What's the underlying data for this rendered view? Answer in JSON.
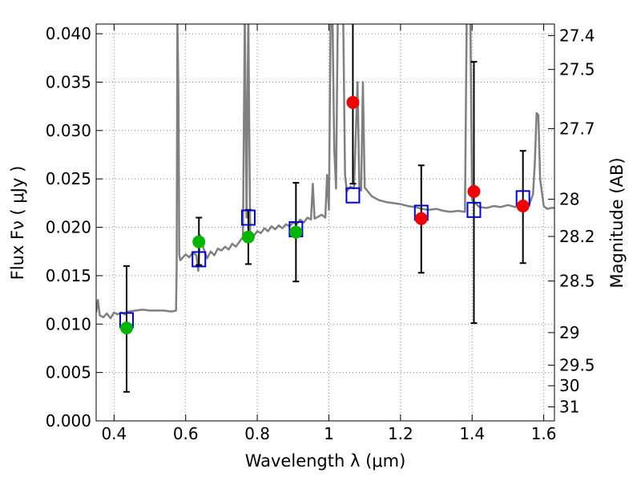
{
  "chart_data": {
    "type": "scatter",
    "xlabel": "Wavelength  λ (μm)",
    "ylabel": "Flux  Fν  ( μJy )",
    "ylabel_right": "Magnitude (AB)",
    "xlim": [
      0.35,
      1.63
    ],
    "ylim": [
      0.0,
      0.041
    ],
    "grid": true,
    "x_ticks": [
      {
        "v": 0.4,
        "label": "0.4"
      },
      {
        "v": 0.6,
        "label": "0.6"
      },
      {
        "v": 0.8,
        "label": "0.8"
      },
      {
        "v": 1.0,
        "label": "1"
      },
      {
        "v": 1.2,
        "label": "1.2"
      },
      {
        "v": 1.4,
        "label": "1.4"
      },
      {
        "v": 1.6,
        "label": "1.6"
      }
    ],
    "y_ticks": [
      {
        "v": 0.0,
        "label": "0.000"
      },
      {
        "v": 0.005,
        "label": "0.005"
      },
      {
        "v": 0.01,
        "label": "0.010"
      },
      {
        "v": 0.015,
        "label": "0.015"
      },
      {
        "v": 0.02,
        "label": "0.020"
      },
      {
        "v": 0.025,
        "label": "0.025"
      },
      {
        "v": 0.03,
        "label": "0.030"
      },
      {
        "v": 0.035,
        "label": "0.035"
      },
      {
        "v": 0.04,
        "label": "0.040"
      }
    ],
    "mag_ticks": [
      {
        "v": 27.4,
        "label": "27.4"
      },
      {
        "v": 27.5,
        "label": "27.5"
      },
      {
        "v": 27.7,
        "label": "27.7"
      },
      {
        "v": 28.0,
        "label": "28"
      },
      {
        "v": 28.2,
        "label": "28.2"
      },
      {
        "v": 28.5,
        "label": "28.5"
      },
      {
        "v": 29.0,
        "label": "29"
      },
      {
        "v": 29.5,
        "label": "29.5"
      },
      {
        "v": 30.0,
        "label": "30"
      },
      {
        "v": 31.0,
        "label": "31"
      }
    ],
    "colors": {
      "spectrum": "#808080",
      "model_box": "#0000cc",
      "green_points": "#00b400",
      "red_points": "#ee0000",
      "errorbar": "#000000",
      "grid": "#808080"
    },
    "series": [
      {
        "kind": "spectrum",
        "points": [
          [
            0.35,
            0.0112
          ],
          [
            0.355,
            0.0125
          ],
          [
            0.36,
            0.0109
          ],
          [
            0.37,
            0.0107
          ],
          [
            0.38,
            0.0111
          ],
          [
            0.39,
            0.0106
          ],
          [
            0.4,
            0.0112
          ],
          [
            0.41,
            0.011
          ],
          [
            0.42,
            0.0112
          ],
          [
            0.43,
            0.011
          ],
          [
            0.44,
            0.0113
          ],
          [
            0.46,
            0.0114
          ],
          [
            0.48,
            0.0115
          ],
          [
            0.5,
            0.0114
          ],
          [
            0.52,
            0.0114
          ],
          [
            0.54,
            0.0114
          ],
          [
            0.56,
            0.0113
          ],
          [
            0.573,
            0.0114
          ],
          [
            0.575,
            0.016
          ],
          [
            0.577,
            0.042
          ],
          [
            0.58,
            0.033
          ],
          [
            0.582,
            0.0172
          ],
          [
            0.585,
            0.0166
          ],
          [
            0.59,
            0.0168
          ],
          [
            0.6,
            0.0172
          ],
          [
            0.61,
            0.0169
          ],
          [
            0.62,
            0.0174
          ],
          [
            0.63,
            0.0171
          ],
          [
            0.635,
            0.0155
          ],
          [
            0.64,
            0.0192
          ],
          [
            0.65,
            0.0178
          ],
          [
            0.66,
            0.0168
          ],
          [
            0.67,
            0.0175
          ],
          [
            0.68,
            0.0171
          ],
          [
            0.69,
            0.0178
          ],
          [
            0.7,
            0.0176
          ],
          [
            0.71,
            0.018
          ],
          [
            0.72,
            0.0177
          ],
          [
            0.73,
            0.0183
          ],
          [
            0.74,
            0.018
          ],
          [
            0.75,
            0.0185
          ],
          [
            0.76,
            0.019
          ],
          [
            0.765,
            0.042
          ],
          [
            0.77,
            0.021
          ],
          [
            0.775,
            0.042
          ],
          [
            0.78,
            0.0195
          ],
          [
            0.79,
            0.0191
          ],
          [
            0.8,
            0.0196
          ],
          [
            0.81,
            0.0194
          ],
          [
            0.82,
            0.0199
          ],
          [
            0.83,
            0.0196
          ],
          [
            0.84,
            0.0201
          ],
          [
            0.85,
            0.0198
          ],
          [
            0.86,
            0.0202
          ],
          [
            0.87,
            0.0199
          ],
          [
            0.88,
            0.0203
          ],
          [
            0.89,
            0.0201
          ],
          [
            0.9,
            0.0205
          ],
          [
            0.91,
            0.0203
          ],
          [
            0.92,
            0.0208
          ],
          [
            0.93,
            0.0205
          ],
          [
            0.94,
            0.021
          ],
          [
            0.95,
            0.0208
          ],
          [
            0.955,
            0.0245
          ],
          [
            0.96,
            0.0209
          ],
          [
            0.97,
            0.0211
          ],
          [
            0.98,
            0.0213
          ],
          [
            0.99,
            0.021
          ],
          [
            0.995,
            0.0254
          ],
          [
            1.0,
            0.0218
          ],
          [
            1.005,
            0.042
          ],
          [
            1.01,
            0.042
          ],
          [
            1.015,
            0.028
          ],
          [
            1.02,
            0.024
          ],
          [
            1.025,
            0.042
          ],
          [
            1.03,
            0.042
          ],
          [
            1.035,
            0.042
          ],
          [
            1.04,
            0.042
          ],
          [
            1.045,
            0.0255
          ],
          [
            1.05,
            0.0237
          ],
          [
            1.06,
            0.0242
          ],
          [
            1.07,
            0.024
          ],
          [
            1.08,
            0.035
          ],
          [
            1.085,
            0.024
          ],
          [
            1.09,
            0.0238
          ],
          [
            1.095,
            0.035
          ],
          [
            1.1,
            0.0241
          ],
          [
            1.12,
            0.0232
          ],
          [
            1.14,
            0.0228
          ],
          [
            1.16,
            0.0226
          ],
          [
            1.18,
            0.0225
          ],
          [
            1.2,
            0.0224
          ],
          [
            1.22,
            0.0222
          ],
          [
            1.24,
            0.0221
          ],
          [
            1.26,
            0.0219
          ],
          [
            1.28,
            0.0218
          ],
          [
            1.3,
            0.0219
          ],
          [
            1.32,
            0.0217
          ],
          [
            1.34,
            0.0216
          ],
          [
            1.36,
            0.0217
          ],
          [
            1.38,
            0.0216
          ],
          [
            1.385,
            0.042
          ],
          [
            1.395,
            0.042
          ],
          [
            1.4,
            0.0228
          ],
          [
            1.42,
            0.0221
          ],
          [
            1.44,
            0.022
          ],
          [
            1.46,
            0.0222
          ],
          [
            1.48,
            0.0221
          ],
          [
            1.5,
            0.0223
          ],
          [
            1.52,
            0.0221
          ],
          [
            1.54,
            0.0222
          ],
          [
            1.56,
            0.0224
          ],
          [
            1.57,
            0.0234
          ],
          [
            1.575,
            0.0265
          ],
          [
            1.58,
            0.0318
          ],
          [
            1.585,
            0.0316
          ],
          [
            1.59,
            0.025
          ],
          [
            1.6,
            0.0222
          ],
          [
            1.61,
            0.0219
          ],
          [
            1.62,
            0.022
          ],
          [
            1.63,
            0.022
          ]
        ]
      },
      {
        "kind": "model-boxes",
        "points": [
          [
            0.435,
            0.0104
          ],
          [
            0.637,
            0.0167
          ],
          [
            0.775,
            0.021
          ],
          [
            0.908,
            0.0198
          ],
          [
            1.067,
            0.0233
          ],
          [
            1.258,
            0.0215
          ],
          [
            1.405,
            0.0218
          ],
          [
            1.542,
            0.023
          ]
        ]
      },
      {
        "kind": "detections",
        "color": "green",
        "points": [
          {
            "x": 0.435,
            "y": 0.0096,
            "err": [
              0.003,
              0.016
            ]
          },
          {
            "x": 0.637,
            "y": 0.0185,
            "err": [
              0.0161,
              0.021
            ]
          },
          {
            "x": 0.775,
            "y": 0.019,
            "err": [
              0.0162,
              0.0218
            ]
          },
          {
            "x": 0.908,
            "y": 0.0195,
            "err": [
              0.0144,
              0.0246
            ]
          }
        ]
      },
      {
        "kind": "detections",
        "color": "red",
        "points": [
          {
            "x": 1.067,
            "y": 0.0329,
            "err": [
              0.0245,
              0.0412
            ]
          },
          {
            "x": 1.258,
            "y": 0.0209,
            "err": [
              0.0153,
              0.0264
            ]
          },
          {
            "x": 1.405,
            "y": 0.0237,
            "err": [
              0.0101,
              0.0371
            ]
          },
          {
            "x": 1.542,
            "y": 0.0222,
            "err": [
              0.0163,
              0.0279
            ]
          }
        ]
      }
    ]
  }
}
